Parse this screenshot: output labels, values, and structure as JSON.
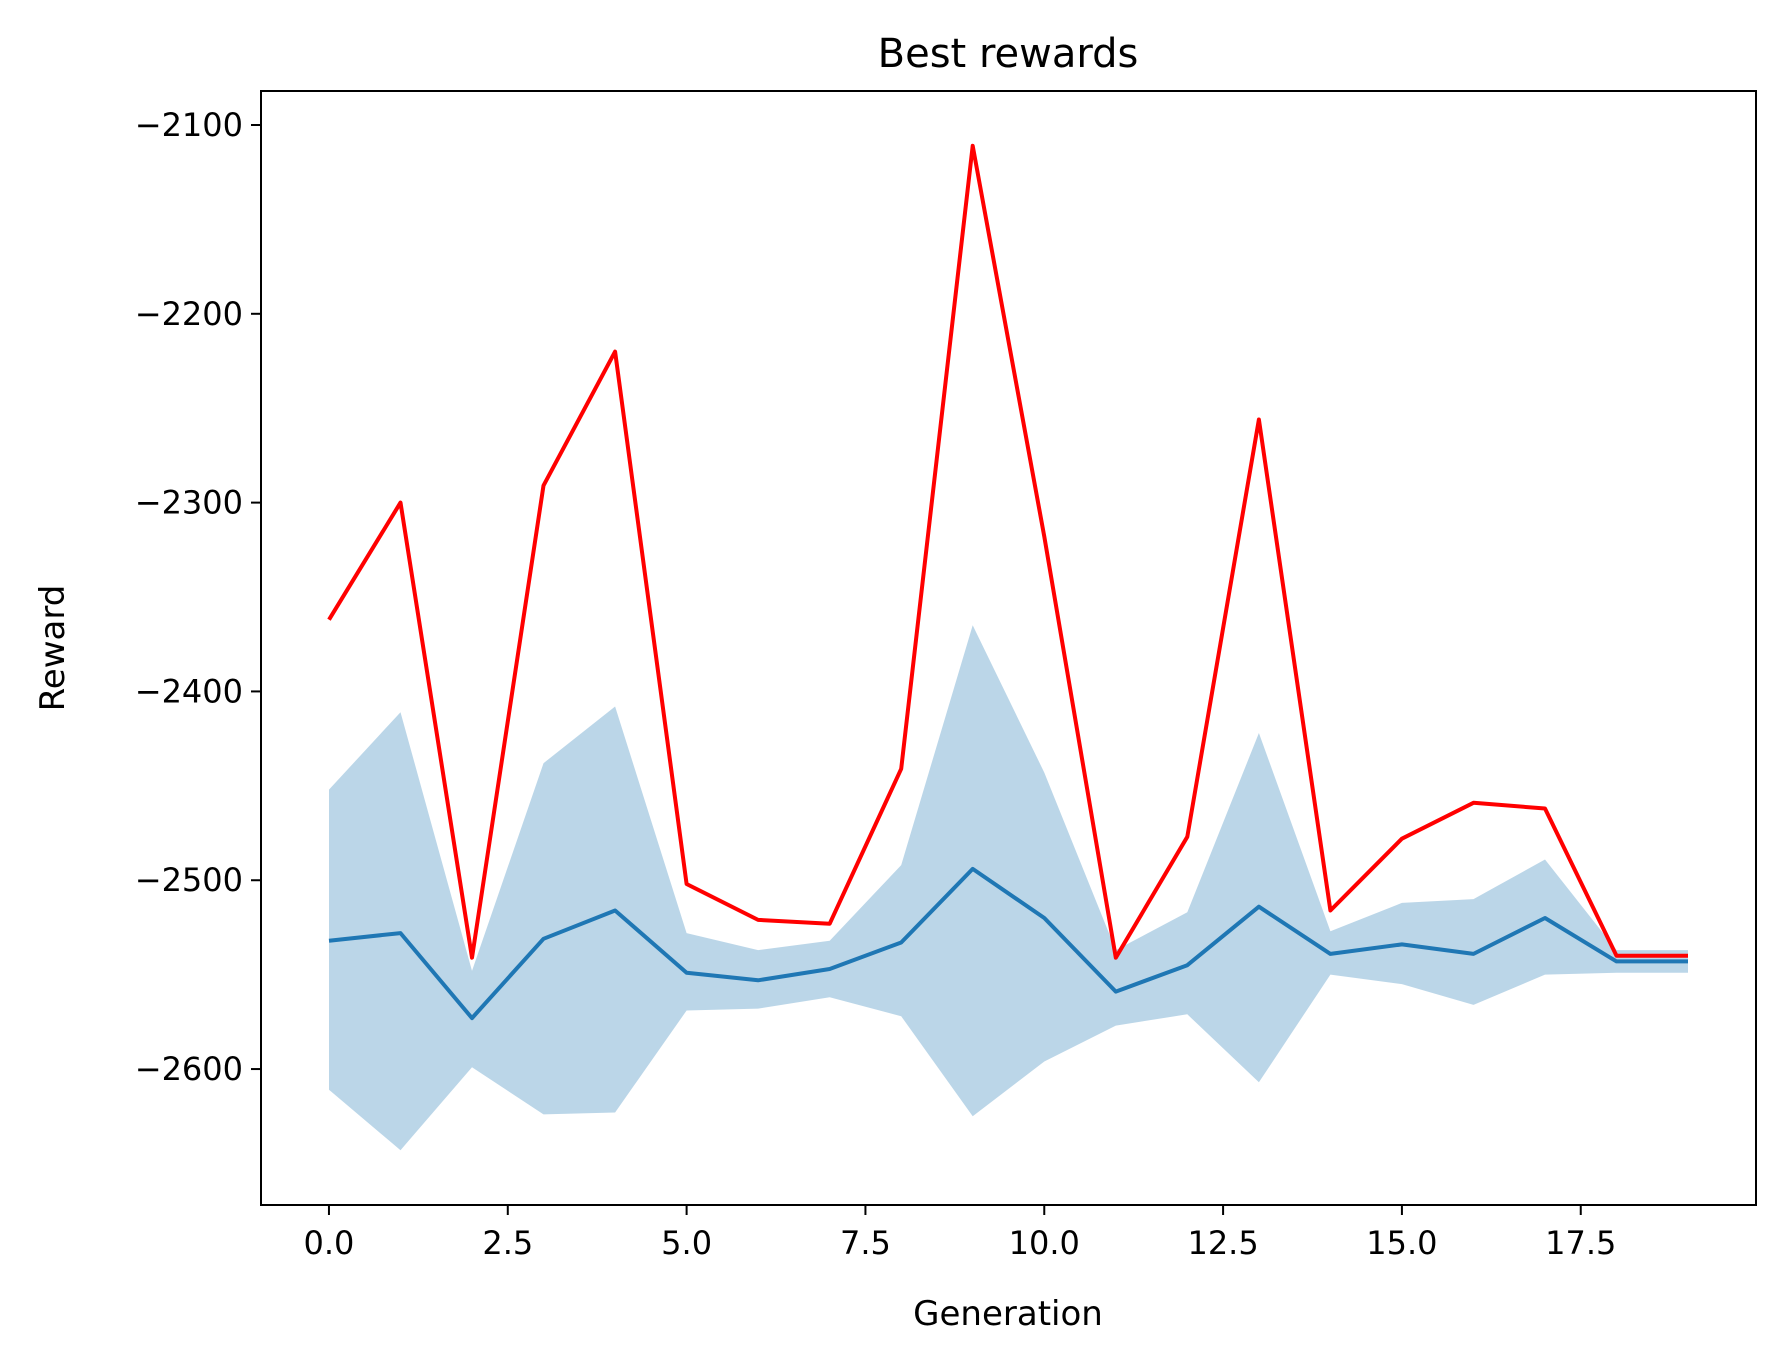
{
  "chart_data": {
    "type": "line",
    "title": "Best rewards",
    "xlabel": "Generation",
    "ylabel": "Reward",
    "xlim": [
      -0.95,
      19.95
    ],
    "ylim": [
      -2672,
      -2082
    ],
    "xticks": [
      0.0,
      2.5,
      5.0,
      7.5,
      10.0,
      12.5,
      15.0,
      17.5
    ],
    "xtick_labels": [
      "0.0",
      "2.5",
      "5.0",
      "7.5",
      "10.0",
      "12.5",
      "15.0",
      "17.5"
    ],
    "yticks": [
      -2600,
      -2500,
      -2400,
      -2300,
      -2200,
      -2100
    ],
    "ytick_labels": [
      "−2600",
      "−2500",
      "−2400",
      "−2300",
      "−2200",
      "−2100"
    ],
    "grid": false,
    "x": [
      0,
      1,
      2,
      3,
      4,
      5,
      6,
      7,
      8,
      9,
      10,
      11,
      12,
      13,
      14,
      15,
      16,
      17,
      18,
      19
    ],
    "series": [
      {
        "kind": "line",
        "color": "#ff0000",
        "values": [
          -2362,
          -2300,
          -2541,
          -2291,
          -2220,
          -2502,
          -2521,
          -2523,
          -2441,
          -2111,
          -2318,
          -2541,
          -2477,
          -2256,
          -2516,
          -2478,
          -2459,
          -2462,
          -2540,
          -2540
        ]
      },
      {
        "kind": "line",
        "color": "#1f77b4",
        "values": [
          -2532,
          -2528,
          -2573,
          -2531,
          -2516,
          -2549,
          -2553,
          -2547,
          -2533,
          -2494,
          -2520,
          -2559,
          -2545,
          -2514,
          -2539,
          -2534,
          -2539,
          -2520,
          -2543,
          -2543
        ]
      },
      {
        "kind": "band",
        "color": "#1f77b4",
        "opacity": 0.3,
        "upper": [
          -2452,
          -2411,
          -2548,
          -2438,
          -2408,
          -2528,
          -2537,
          -2532,
          -2492,
          -2365,
          -2443,
          -2537,
          -2517,
          -2422,
          -2527,
          -2512,
          -2510,
          -2489,
          -2537,
          -2537
        ],
        "lower": [
          -2611,
          -2643,
          -2599,
          -2624,
          -2623,
          -2569,
          -2568,
          -2562,
          -2572,
          -2625,
          -2596,
          -2577,
          -2571,
          -2607,
          -2550,
          -2555,
          -2566,
          -2550,
          -2549,
          -2549
        ]
      }
    ]
  }
}
